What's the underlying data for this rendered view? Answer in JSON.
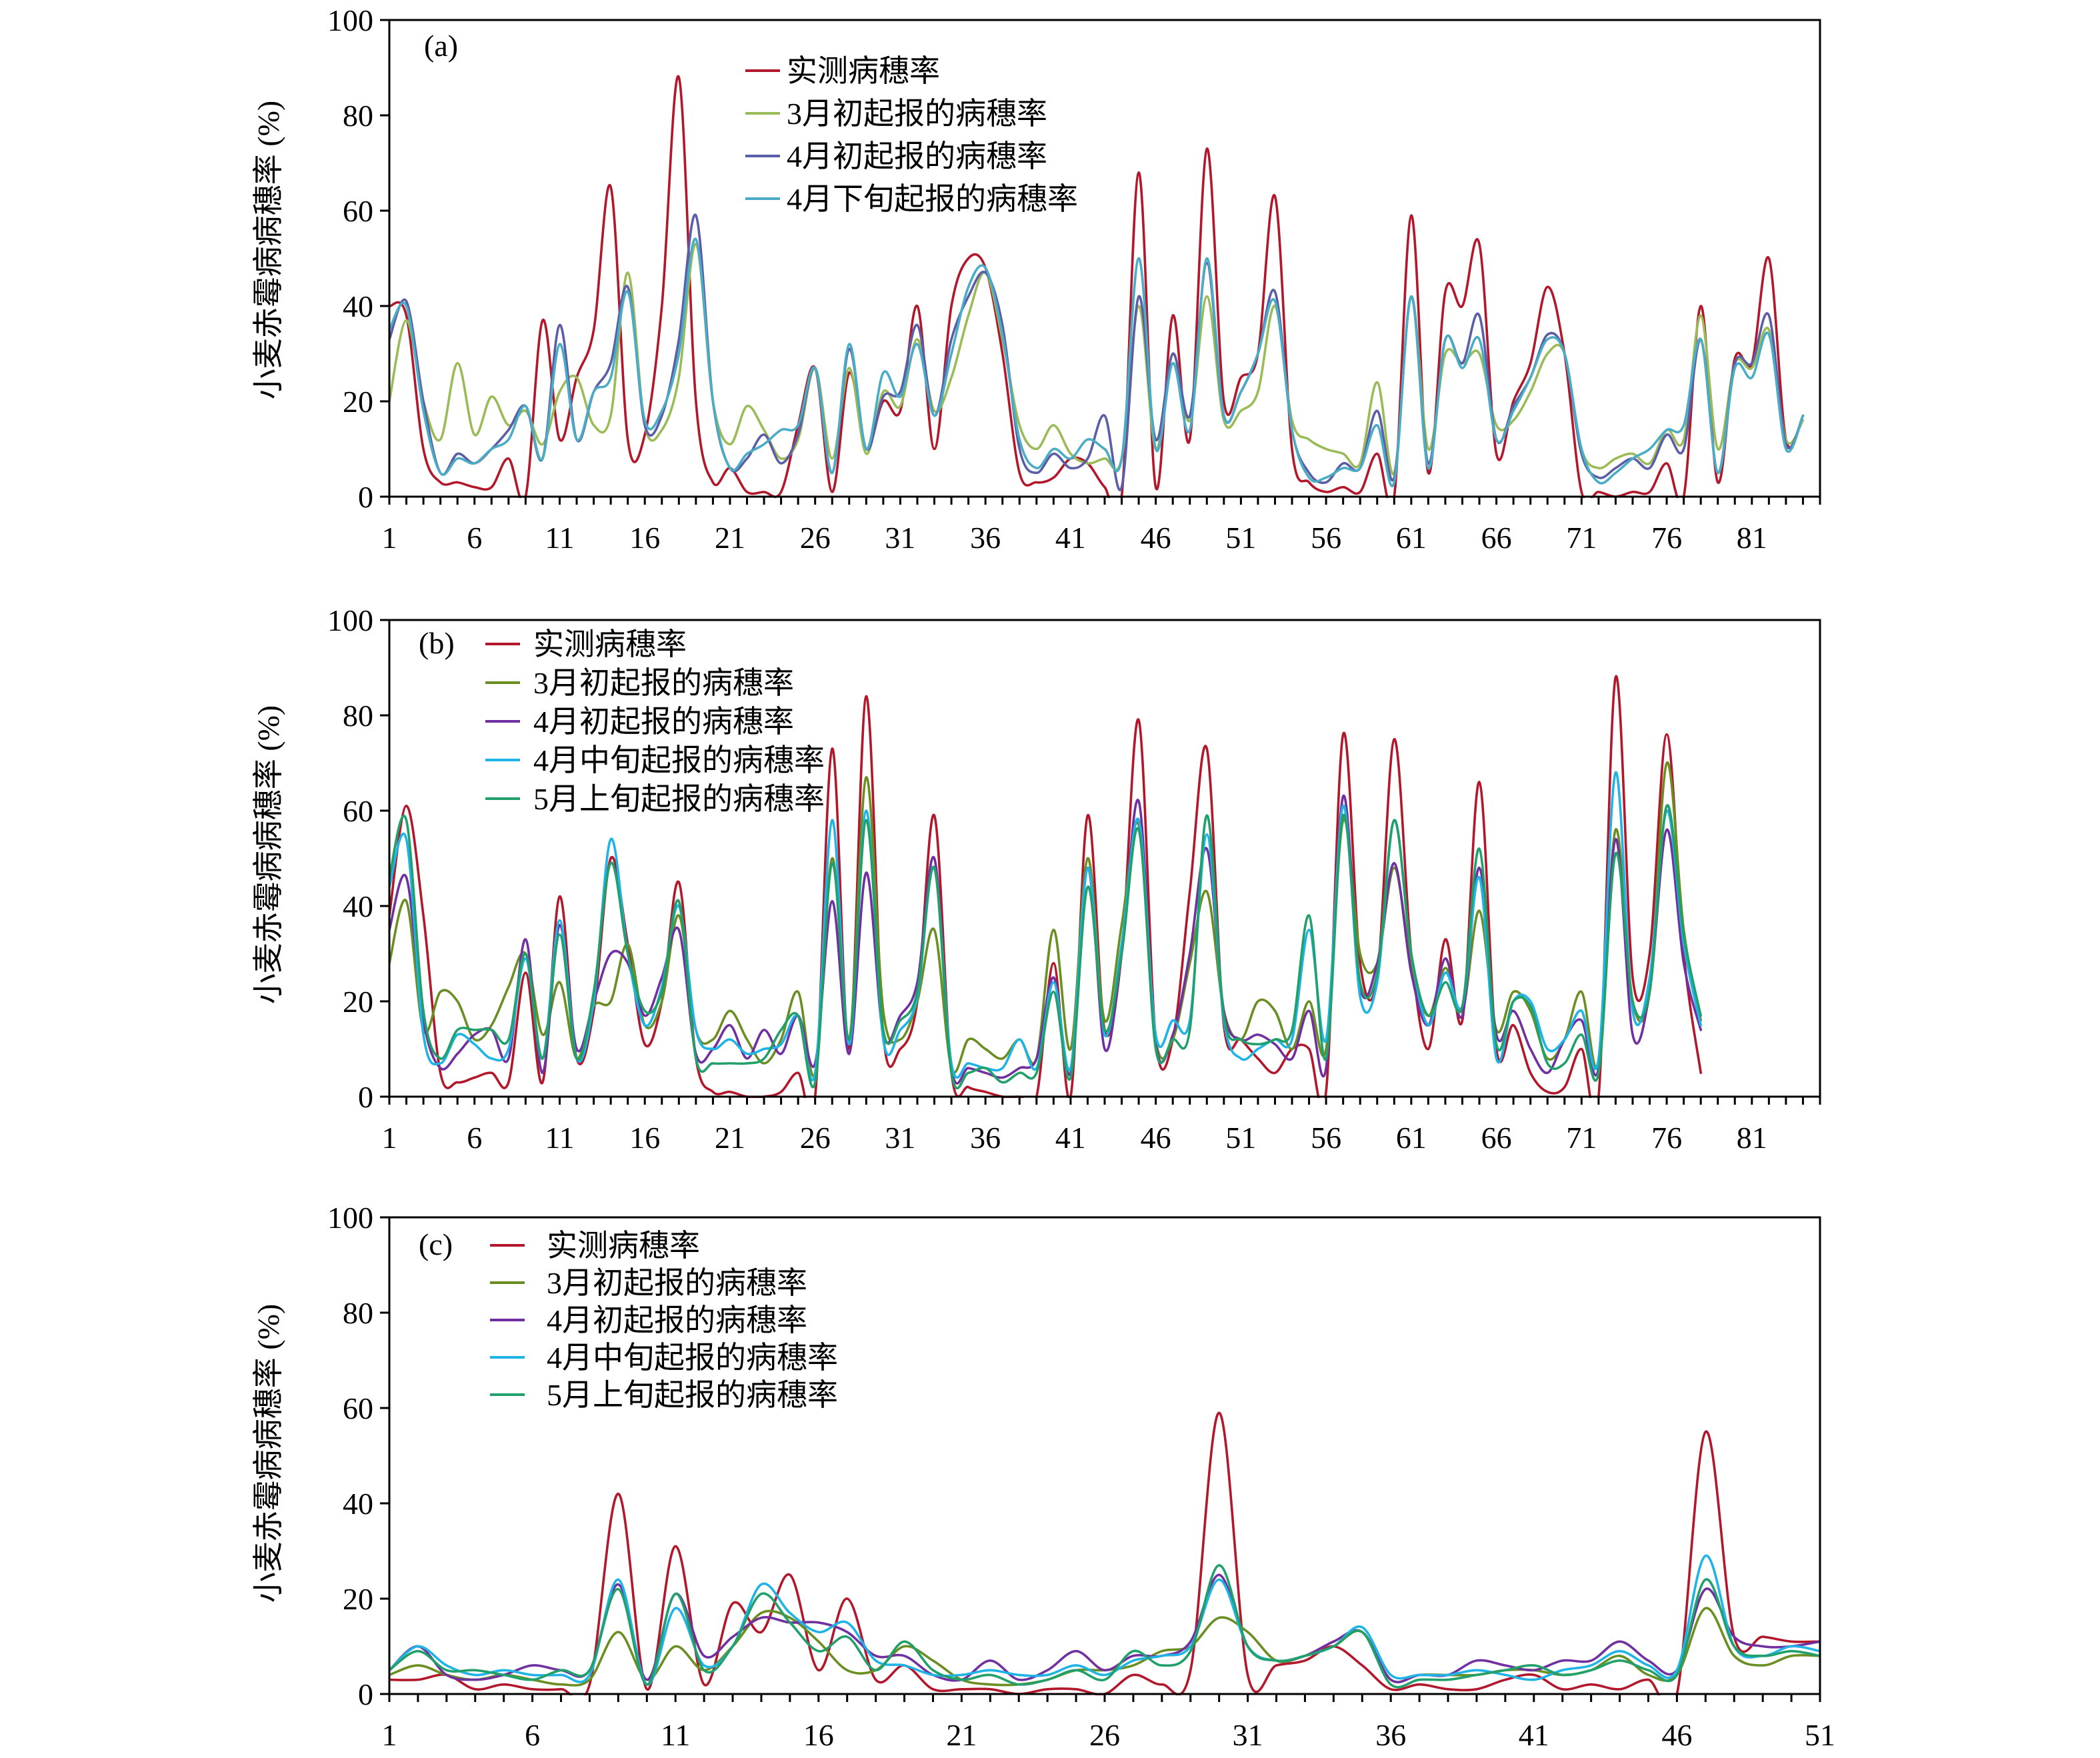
{
  "chart_data": [
    {
      "panel_label": "(a)",
      "type": "line",
      "ylabel": "小麦赤霉病病穗率 (%)",
      "ylim": [
        0,
        100
      ],
      "xlim": [
        1,
        85
      ],
      "x_ticks": [
        1,
        6,
        11,
        16,
        21,
        26,
        31,
        36,
        41,
        46,
        51,
        56,
        61,
        66,
        71,
        76,
        81
      ],
      "y_ticks": [
        0,
        20,
        40,
        60,
        80,
        100
      ],
      "legend": {
        "placement": "top-center"
      },
      "series": [
        {
          "name": "实测病穗率",
          "color": "#b2182b",
          "values": [
            40,
            38,
            10,
            3,
            3,
            2,
            2,
            8,
            0,
            37,
            12,
            25,
            35,
            65,
            12,
            13,
            40,
            88,
            20,
            3,
            6,
            1,
            1,
            1,
            15,
            27,
            1,
            26,
            10,
            20,
            18,
            40,
            10,
            40,
            50,
            48,
            30,
            5,
            3,
            4,
            8,
            7,
            2,
            0,
            68,
            2,
            38,
            12,
            73,
            20,
            25,
            30,
            63,
            10,
            3,
            1,
            2,
            1,
            9,
            0,
            59,
            5,
            43,
            40,
            53,
            9,
            20,
            28,
            44,
            30,
            1,
            1,
            0,
            1,
            1,
            7,
            0,
            40,
            3,
            29,
            28,
            50,
            12,
            17
          ]
        },
        {
          "name": "3月初起报的病穗率",
          "color": "#9bbb59",
          "values": [
            20,
            37,
            20,
            12,
            28,
            13,
            21,
            15,
            18,
            11,
            22,
            25,
            15,
            17,
            47,
            15,
            14,
            25,
            53,
            20,
            11,
            19,
            14,
            8,
            12,
            27,
            8,
            27,
            9,
            22,
            19,
            33,
            18,
            25,
            38,
            47,
            33,
            15,
            10,
            15,
            9,
            7,
            8,
            8,
            40,
            10,
            30,
            16,
            42,
            16,
            18,
            22,
            40,
            16,
            12,
            10,
            9,
            7,
            24,
            5,
            42,
            10,
            30,
            28,
            30,
            15,
            16,
            22,
            30,
            30,
            10,
            6,
            8,
            9,
            7,
            14,
            12,
            38,
            10,
            28,
            27,
            35,
            12,
            16
          ]
        },
        {
          "name": "4月初起报的病穗率",
          "color": "#5b5ea6",
          "values": [
            33,
            41,
            20,
            5,
            9,
            7,
            10,
            14,
            19,
            8,
            36,
            12,
            22,
            28,
            44,
            15,
            17,
            33,
            59,
            20,
            6,
            8,
            13,
            7,
            13,
            27,
            5,
            31,
            10,
            21,
            22,
            36,
            17,
            33,
            42,
            47,
            36,
            10,
            5,
            9,
            6,
            8,
            17,
            2,
            42,
            12,
            30,
            17,
            49,
            17,
            22,
            30,
            43,
            14,
            5,
            3,
            7,
            6,
            18,
            4,
            42,
            7,
            33,
            28,
            38,
            12,
            19,
            25,
            34,
            30,
            9,
            4,
            6,
            8,
            6,
            13,
            10,
            33,
            5,
            28,
            28,
            38,
            11,
            17
          ]
        },
        {
          "name": "4月下旬起报的病穗率",
          "color": "#4bacc6",
          "values": [
            35,
            40,
            18,
            5,
            8,
            7,
            10,
            12,
            19,
            8,
            32,
            12,
            22,
            25,
            43,
            16,
            18,
            30,
            54,
            20,
            6,
            9,
            11,
            14,
            15,
            27,
            5,
            32,
            10,
            26,
            21,
            32,
            17,
            30,
            44,
            48,
            34,
            12,
            6,
            10,
            8,
            12,
            10,
            8,
            50,
            10,
            28,
            14,
            50,
            17,
            22,
            30,
            41,
            14,
            4,
            4,
            6,
            6,
            15,
            3,
            42,
            6,
            33,
            27,
            33,
            12,
            18,
            25,
            33,
            30,
            10,
            3,
            5,
            8,
            10,
            14,
            15,
            33,
            5,
            27,
            25,
            34,
            10,
            17
          ]
        }
      ]
    },
    {
      "panel_label": "(b)",
      "type": "line",
      "ylabel": "小麦赤霉病病穗率 (%)",
      "ylim": [
        0,
        100
      ],
      "xlim": [
        1,
        85
      ],
      "x_ticks": [
        1,
        6,
        11,
        16,
        21,
        26,
        31,
        36,
        41,
        46,
        51,
        56,
        61,
        66,
        71,
        76,
        81
      ],
      "y_ticks": [
        0,
        20,
        40,
        60,
        80,
        100
      ],
      "legend": {
        "placement": "top-left"
      },
      "series": [
        {
          "name": "实测病穗率",
          "color": "#b2182b",
          "values": [
            38,
            61,
            38,
            5,
            3,
            4,
            5,
            3,
            26,
            3,
            42,
            8,
            18,
            50,
            32,
            11,
            20,
            45,
            8,
            1,
            1,
            0,
            0,
            1,
            5,
            0,
            73,
            10,
            84,
            13,
            10,
            20,
            59,
            5,
            2,
            1,
            0,
            0,
            0,
            28,
            0,
            59,
            14,
            30,
            79,
            12,
            12,
            43,
            73,
            15,
            12,
            8,
            5,
            10,
            10,
            1,
            76,
            28,
            25,
            75,
            30,
            10,
            33,
            16,
            66,
            10,
            15,
            5,
            1,
            2,
            10,
            0,
            88,
            25,
            30,
            76,
            30,
            5
          ]
        },
        {
          "name": "3月初起报的病穗率",
          "color": "#6b8e23",
          "values": [
            28,
            41,
            14,
            22,
            20,
            12,
            15,
            23,
            30,
            13,
            24,
            8,
            19,
            20,
            32,
            15,
            20,
            38,
            14,
            12,
            18,
            12,
            7,
            12,
            22,
            5,
            50,
            12,
            67,
            18,
            12,
            20,
            35,
            6,
            12,
            10,
            8,
            12,
            8,
            35,
            10,
            50,
            16,
            36,
            57,
            12,
            12,
            28,
            43,
            18,
            12,
            20,
            18,
            10,
            20,
            10,
            58,
            30,
            28,
            48,
            28,
            17,
            27,
            18,
            39,
            14,
            22,
            18,
            8,
            12,
            22,
            7,
            56,
            20,
            22,
            70,
            35,
            16
          ]
        },
        {
          "name": "4月初起报的病穗率",
          "color": "#7030a0",
          "values": [
            35,
            46,
            16,
            6,
            9,
            13,
            14,
            8,
            33,
            5,
            36,
            10,
            20,
            30,
            28,
            17,
            25,
            35,
            9,
            10,
            15,
            8,
            14,
            9,
            17,
            7,
            41,
            9,
            47,
            13,
            17,
            24,
            50,
            6,
            6,
            5,
            4,
            6,
            8,
            25,
            5,
            48,
            10,
            30,
            62,
            11,
            13,
            30,
            52,
            18,
            12,
            13,
            11,
            8,
            18,
            6,
            63,
            23,
            28,
            49,
            26,
            15,
            29,
            17,
            48,
            13,
            18,
            10,
            5,
            12,
            16,
            6,
            54,
            13,
            22,
            56,
            28,
            14
          ]
        },
        {
          "name": "4月中旬起报的病穗率",
          "color": "#1fb3e6",
          "values": [
            44,
            54,
            13,
            7,
            13,
            11,
            8,
            10,
            29,
            8,
            37,
            8,
            20,
            54,
            30,
            15,
            23,
            40,
            14,
            10,
            12,
            9,
            10,
            11,
            17,
            5,
            58,
            11,
            60,
            12,
            14,
            21,
            48,
            7,
            7,
            6,
            6,
            12,
            6,
            24,
            6,
            48,
            13,
            32,
            58,
            13,
            16,
            16,
            55,
            16,
            8,
            10,
            12,
            12,
            35,
            12,
            61,
            21,
            24,
            58,
            30,
            15,
            26,
            19,
            46,
            8,
            20,
            20,
            10,
            12,
            18,
            8,
            68,
            18,
            25,
            60,
            32,
            15
          ]
        },
        {
          "name": "5月上旬起报的病穗率",
          "color": "#22a06b",
          "values": [
            46,
            58,
            18,
            8,
            14,
            14,
            14,
            12,
            30,
            8,
            34,
            8,
            22,
            49,
            30,
            18,
            22,
            41,
            8,
            7,
            7,
            7,
            8,
            14,
            17,
            3,
            49,
            12,
            58,
            14,
            16,
            22,
            48,
            5,
            5,
            6,
            3,
            5,
            5,
            22,
            4,
            44,
            14,
            30,
            56,
            10,
            12,
            14,
            59,
            17,
            12,
            11,
            12,
            14,
            38,
            8,
            59,
            24,
            26,
            58,
            30,
            17,
            24,
            19,
            52,
            11,
            20,
            19,
            7,
            7,
            13,
            5,
            51,
            20,
            22,
            61,
            34,
            17
          ]
        }
      ]
    },
    {
      "panel_label": "(c)",
      "type": "line",
      "ylabel": "小麦赤霉病病穗率 (%)",
      "ylim": [
        0,
        100
      ],
      "xlim": [
        1,
        51
      ],
      "x_ticks": [
        1,
        6,
        11,
        16,
        21,
        26,
        31,
        36,
        41,
        46,
        51
      ],
      "y_ticks": [
        0,
        20,
        40,
        60,
        80,
        100
      ],
      "legend": {
        "placement": "top-left"
      },
      "series": [
        {
          "name": "实测病穗率",
          "color": "#b2182b",
          "values": [
            3,
            3,
            4,
            1,
            2,
            1,
            1,
            2,
            42,
            1,
            31,
            2,
            19,
            13,
            25,
            5,
            20,
            3,
            6,
            1,
            1,
            1,
            0,
            1,
            1,
            0,
            4,
            2,
            5,
            59,
            4,
            6,
            7,
            10,
            6,
            1,
            2,
            1,
            1,
            3,
            4,
            1,
            2,
            1,
            3,
            0,
            55,
            12,
            12,
            11,
            11
          ]
        },
        {
          "name": "3月初起报的病穗率",
          "color": "#6b8e23",
          "values": [
            4,
            6,
            4,
            3,
            4,
            3,
            2,
            3,
            13,
            3,
            10,
            5,
            10,
            17,
            16,
            11,
            5,
            5,
            10,
            7,
            3,
            2,
            2,
            3,
            5,
            5,
            6,
            9,
            10,
            16,
            13,
            7,
            8,
            10,
            13,
            3,
            4,
            4,
            4,
            5,
            5,
            4,
            5,
            8,
            4,
            4,
            18,
            8,
            6,
            8,
            8
          ]
        },
        {
          "name": "4月初起报的病穗率",
          "color": "#7030a0",
          "values": [
            5,
            10,
            4,
            3,
            4,
            6,
            5,
            5,
            23,
            3,
            21,
            8,
            12,
            16,
            15,
            15,
            13,
            8,
            8,
            4,
            3,
            7,
            3,
            5,
            9,
            5,
            8,
            8,
            11,
            25,
            10,
            7,
            8,
            11,
            13,
            3,
            4,
            4,
            7,
            6,
            5,
            7,
            7,
            11,
            7,
            5,
            22,
            12,
            10,
            10,
            11
          ]
        },
        {
          "name": "4月中旬起报的病穗率",
          "color": "#1fb3e6",
          "values": [
            5,
            10,
            6,
            4,
            5,
            4,
            4,
            4,
            24,
            2,
            18,
            6,
            10,
            23,
            17,
            13,
            15,
            7,
            6,
            4,
            4,
            5,
            4,
            4,
            6,
            4,
            7,
            8,
            10,
            24,
            10,
            7,
            8,
            10,
            14,
            4,
            4,
            4,
            5,
            4,
            3,
            5,
            6,
            9,
            6,
            5,
            29,
            10,
            8,
            10,
            9
          ]
        },
        {
          "name": "5月上旬起报的病穗率",
          "color": "#22a06b",
          "values": [
            5,
            9,
            5,
            5,
            4,
            3,
            5,
            5,
            22,
            2,
            21,
            5,
            10,
            21,
            15,
            9,
            12,
            5,
            11,
            5,
            3,
            4,
            2,
            3,
            5,
            3,
            9,
            6,
            9,
            27,
            10,
            7,
            8,
            10,
            13,
            2,
            3,
            3,
            4,
            5,
            6,
            4,
            5,
            7,
            5,
            4,
            24,
            10,
            8,
            9,
            8
          ]
        }
      ]
    }
  ]
}
